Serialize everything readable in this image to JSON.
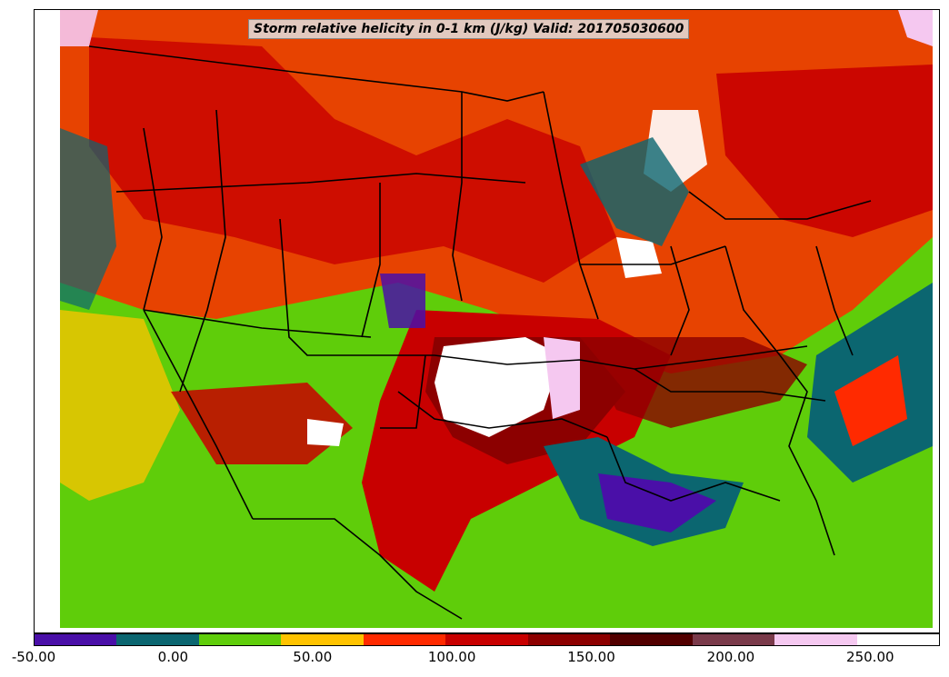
{
  "title": "Storm relative helicity in 0-1 km (J/kg) Valid: 201705030600",
  "legend": {
    "min": -50,
    "max": 275,
    "colors": [
      "#4a0fa8",
      "#0b6670",
      "#5fcd0a",
      "#ffc300",
      "#ff2a00",
      "#c80000",
      "#8c0000",
      "#520000",
      "#7a3a4a",
      "#f5c8f0",
      "#ffffff"
    ],
    "ticks": [
      {
        "value": -50,
        "label": "-50.00"
      },
      {
        "value": 0,
        "label": "0.00"
      },
      {
        "value": 50,
        "label": "50.00"
      },
      {
        "value": 100,
        "label": "100.00"
      },
      {
        "value": 150,
        "label": "150.00"
      },
      {
        "value": 200,
        "label": "200.00"
      },
      {
        "value": 250,
        "label": "250.00"
      }
    ]
  }
}
